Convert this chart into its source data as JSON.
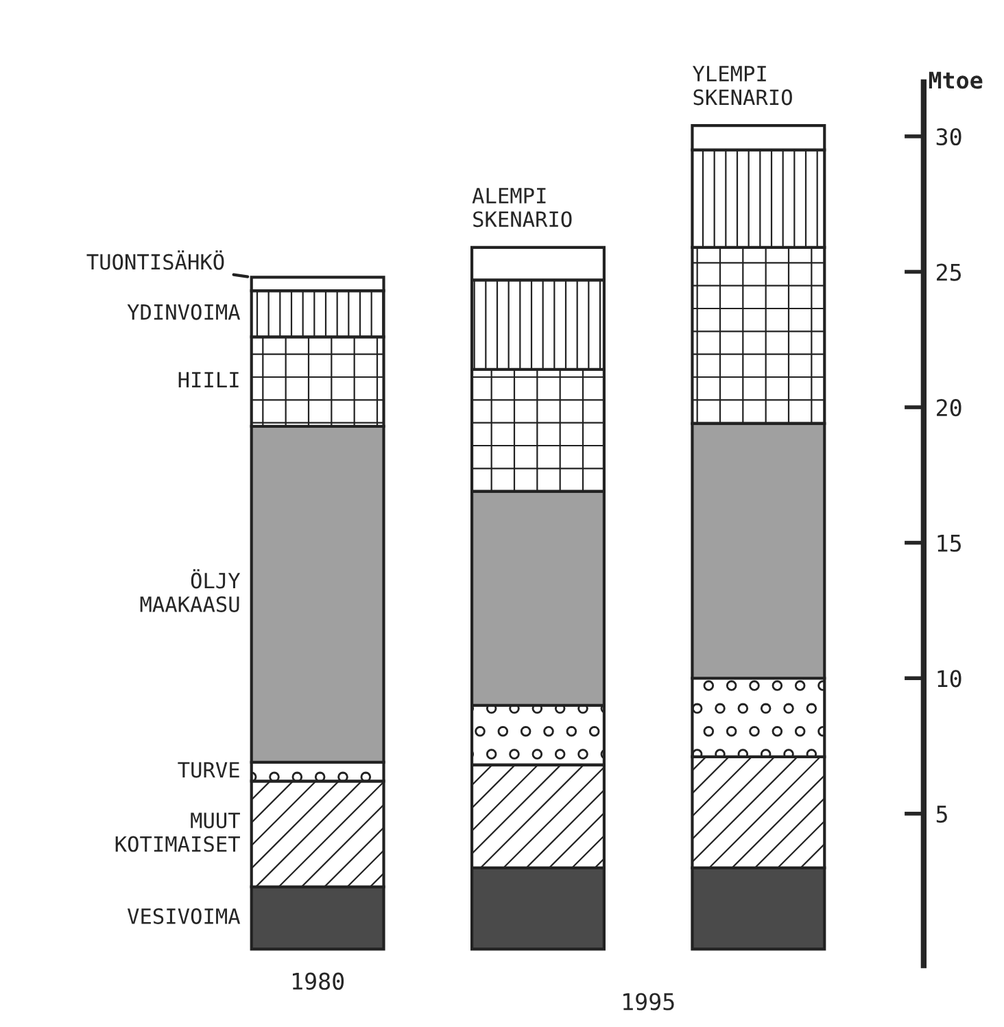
{
  "chart_data": {
    "type": "bar",
    "stacked": true,
    "categories": [
      "1980",
      null,
      null
    ],
    "ylabel": "Mtoe",
    "ylim": [
      -0.6,
      32
    ],
    "yticks": [
      5,
      10,
      15,
      20,
      25,
      30
    ],
    "grid": false,
    "legend": false,
    "annotations": [
      "ALEMPI\nSKENARIO",
      "YLEMPI\nSKENARIO",
      "1995"
    ],
    "series": [
      {
        "name": "VESIVOIMA",
        "color": "#4a4a4a",
        "values": [
          2.3,
          3.0,
          3.0
        ]
      },
      {
        "name": "MUUT\nKOTIMAISET",
        "color": "#ffffff",
        "values": [
          3.9,
          3.8,
          4.1
        ]
      },
      {
        "name": "TURVE",
        "color": "#ffffff",
        "values": [
          0.7,
          2.2,
          2.9
        ]
      },
      {
        "name": "ÖLJY\nMAAKAASU",
        "color": "#a0a0a0",
        "values": [
          12.4,
          7.9,
          9.4
        ]
      },
      {
        "name": "HIILI",
        "color": "#ffffff",
        "values": [
          3.3,
          4.5,
          6.5
        ]
      },
      {
        "name": "YDINVOIMA",
        "color": "#ffffff",
        "values": [
          1.7,
          3.3,
          3.6
        ]
      },
      {
        "name": "TUONTISÄHKÖ",
        "color": "#ffffff",
        "values": [
          0.5,
          1.2,
          0.9
        ]
      }
    ]
  }
}
